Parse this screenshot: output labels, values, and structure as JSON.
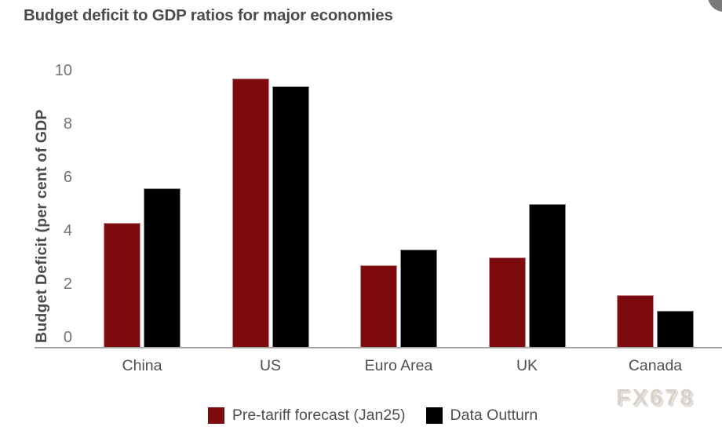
{
  "chart_data": {
    "type": "bar",
    "title": "Budget deficit to GDP ratios for major economies",
    "ylabel": "Budget Deficit (per cent of GDP",
    "xlabel": "",
    "categories": [
      "China",
      "US",
      "Euro Area",
      "UK",
      "Canada"
    ],
    "series": [
      {
        "name": "Pre-tariff forecast (Jan25)",
        "color": "#7E0B0D",
        "values": [
          4.3,
          9.7,
          2.7,
          3.0,
          1.6
        ]
      },
      {
        "name": "Data Outturn",
        "color": "#000000",
        "values": [
          5.6,
          9.4,
          3.3,
          5.0,
          1.0
        ]
      }
    ],
    "ylim": [
      0,
      10
    ],
    "yticks": [
      0,
      2,
      4,
      6,
      8,
      10
    ],
    "grid": false,
    "legend_position": "bottom"
  },
  "watermark": {
    "text": "FX678"
  },
  "colors": {
    "title_text": "#4B4B4B",
    "tick_text": "#737373",
    "category_text": "#4F4F4F",
    "legend_text": "#4F4F4F",
    "axis_line": "#A5A5A5",
    "watermark_text": "#D8D2CA",
    "corner_circle": "#7A7A7A",
    "background": "#FFFFFF"
  }
}
